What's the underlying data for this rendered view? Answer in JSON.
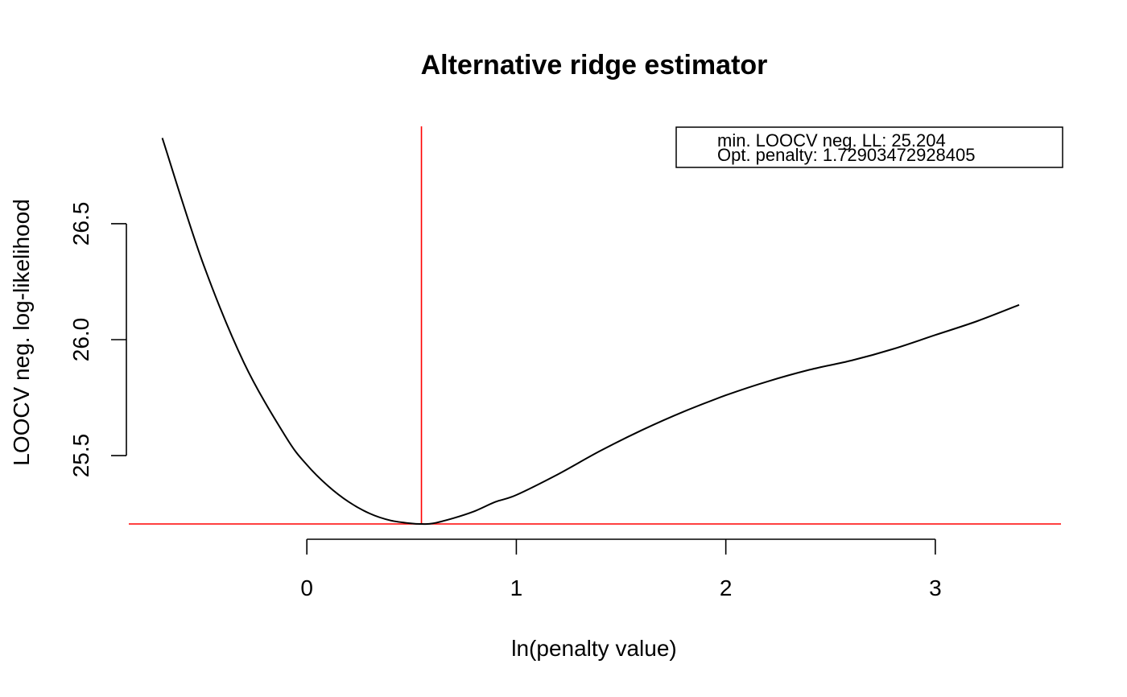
{
  "chart_data": {
    "type": "line",
    "title": "Alternative ridge estimator",
    "xlabel": "ln(penalty value)",
    "ylabel": "LOOCV neg. log-likelihood",
    "xlim": [
      -0.85,
      3.6
    ],
    "ylim": [
      25.205,
      26.92
    ],
    "x_ticks": [
      0,
      1,
      2,
      3
    ],
    "y_ticks": [
      25.5,
      26.0,
      26.5
    ],
    "y_tick_labels": [
      "25.5",
      "26.0",
      "26.5"
    ],
    "x_tick_labels": [
      "0",
      "1",
      "2",
      "3"
    ],
    "grid": false,
    "legend_position": "top-right",
    "legend": {
      "lines": [
        "min. LOOCV neg. LL: 25.204",
        "Opt. penalty: 1.72903472928405"
      ]
    },
    "series": [
      {
        "x": [
          -0.69,
          -0.5,
          -0.3,
          -0.1,
          0.0,
          0.1,
          0.2,
          0.3,
          0.4,
          0.5,
          0.547,
          0.6,
          0.7,
          0.8,
          0.9,
          1.0,
          1.2,
          1.4,
          1.6,
          1.8,
          2.0,
          2.2,
          2.4,
          2.6,
          2.8,
          3.0,
          3.2,
          3.4
        ],
        "y": [
          26.87,
          26.34,
          25.9,
          25.58,
          25.46,
          25.37,
          25.3,
          25.25,
          25.22,
          25.207,
          25.205,
          25.207,
          25.23,
          25.26,
          25.3,
          25.33,
          25.42,
          25.52,
          25.61,
          25.69,
          25.76,
          25.82,
          25.87,
          25.91,
          25.96,
          26.02,
          26.08,
          26.15
        ],
        "color": "#000000"
      }
    ],
    "reference_lines": {
      "vertical_x": 0.547,
      "horizontal_y": 25.205,
      "color": "#ff0000"
    }
  }
}
